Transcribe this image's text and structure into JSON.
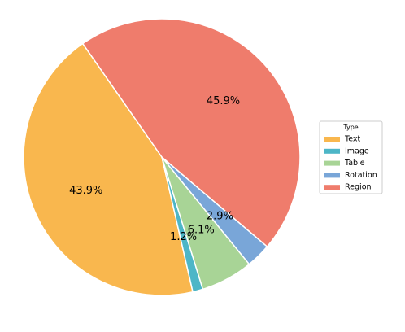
{
  "chart_data": {
    "type": "pie",
    "legend": {
      "title": "Type",
      "placement": "right"
    },
    "slices": [
      {
        "label": "Text",
        "value": 43.9,
        "pct_label": "43.9%",
        "color": "#F9B74E"
      },
      {
        "label": "Image",
        "value": 1.2,
        "pct_label": "1.2%",
        "color": "#4DB6C7"
      },
      {
        "label": "Table",
        "value": 6.1,
        "pct_label": "6.1%",
        "color": "#A8D496"
      },
      {
        "label": "Rotation",
        "value": 2.9,
        "pct_label": "2.9%",
        "color": "#79A6D8"
      },
      {
        "label": "Region",
        "value": 45.9,
        "pct_label": "45.9%",
        "color": "#EF7C6C"
      }
    ]
  }
}
